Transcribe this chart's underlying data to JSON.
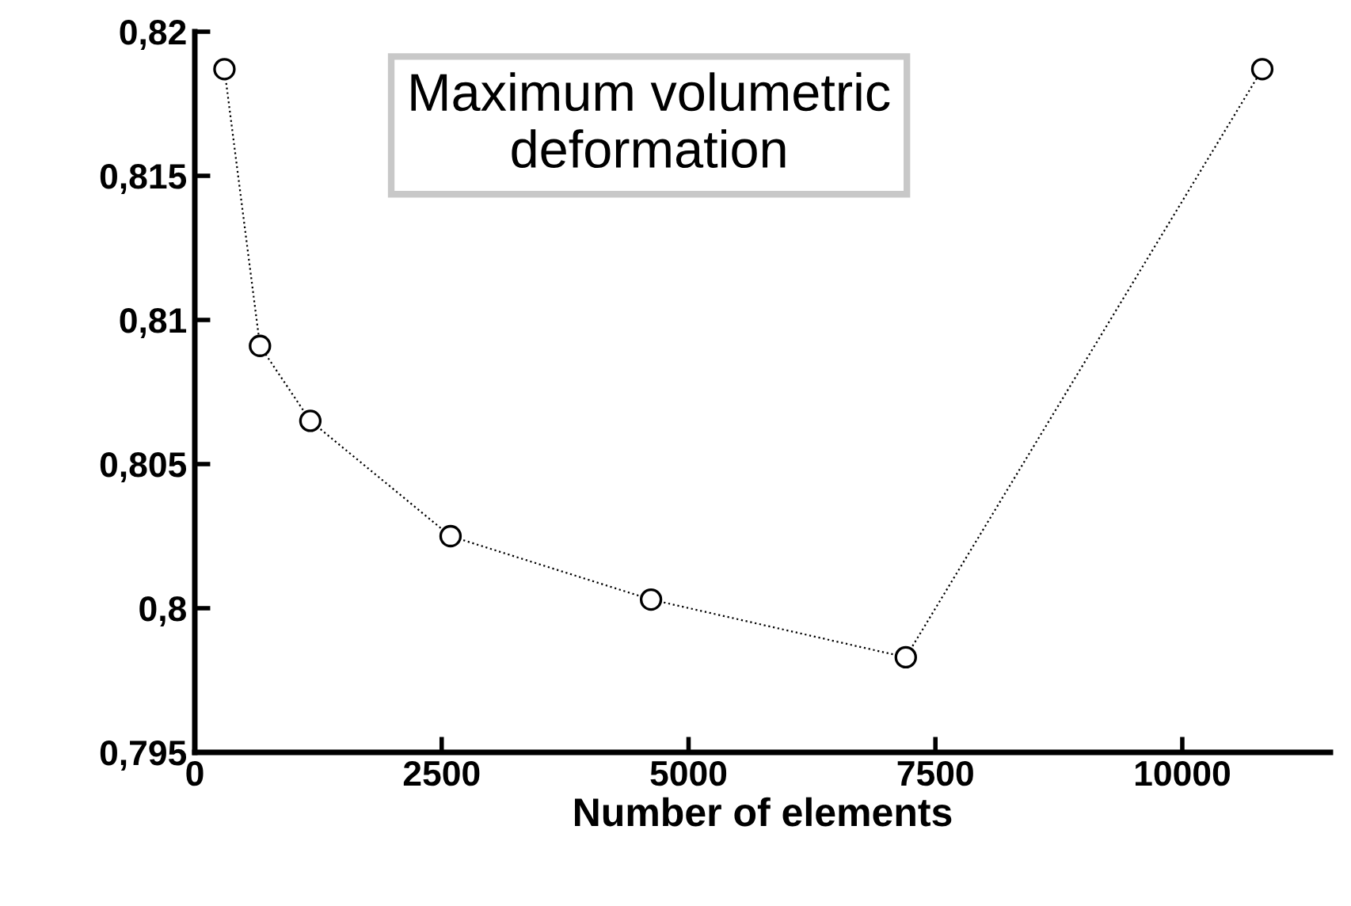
{
  "chart_data": {
    "type": "line",
    "title": "Maximum volumetric\ndeformation",
    "xlabel": "Number of elements",
    "x": [
      300,
      660,
      1170,
      2590,
      4620,
      7200,
      10810
    ],
    "series": [
      {
        "color": "#000000",
        "values": [
          0.8187,
          0.8091,
          0.8065,
          0.8025,
          0.8003,
          0.7983,
          0.8187
        ]
      }
    ],
    "xlim": [
      0,
      11500
    ],
    "xticks": [
      0,
      2500,
      5000,
      7500,
      10000
    ],
    "ylim": [
      0.795,
      0.82
    ],
    "yticks": [
      {
        "value": 0.795,
        "label": "0,795"
      },
      {
        "value": 0.8,
        "label": "0,8"
      },
      {
        "value": 0.805,
        "label": "0,805"
      },
      {
        "value": 0.81,
        "label": "0,81"
      },
      {
        "value": 0.815,
        "label": "0,815"
      },
      {
        "value": 0.82,
        "label": "0,82"
      }
    ],
    "marker": "circle",
    "line_style": "dotted",
    "grid": false,
    "legend": false
  }
}
